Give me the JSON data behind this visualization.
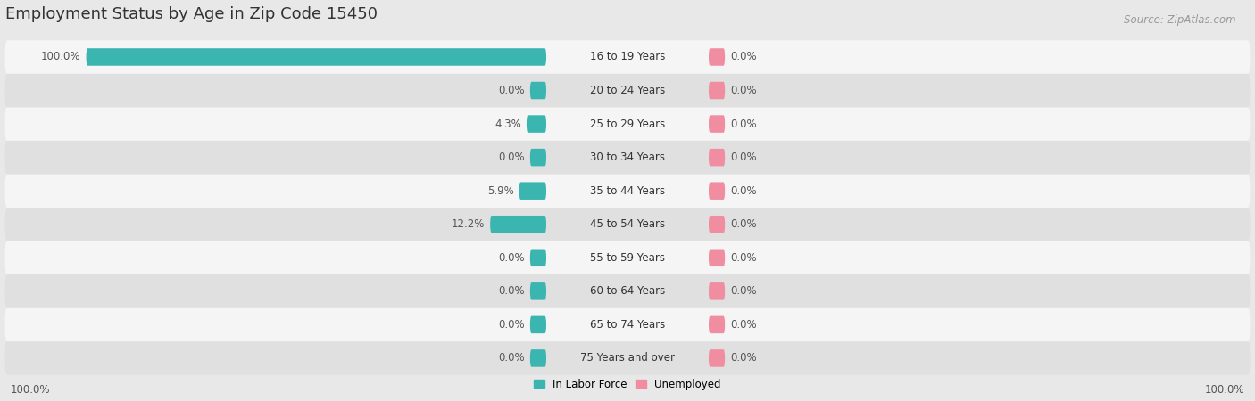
{
  "title": "Employment Status by Age in Zip Code 15450",
  "source": "Source: ZipAtlas.com",
  "categories": [
    "16 to 19 Years",
    "20 to 24 Years",
    "25 to 29 Years",
    "30 to 34 Years",
    "35 to 44 Years",
    "45 to 54 Years",
    "55 to 59 Years",
    "60 to 64 Years",
    "65 to 74 Years",
    "75 Years and over"
  ],
  "labor_force": [
    100.0,
    0.0,
    4.3,
    0.0,
    5.9,
    12.2,
    0.0,
    0.0,
    0.0,
    0.0
  ],
  "unemployed": [
    0.0,
    0.0,
    0.0,
    0.0,
    0.0,
    0.0,
    0.0,
    0.0,
    0.0,
    0.0
  ],
  "labor_force_color": "#3ab5b0",
  "unemployed_color": "#f08da0",
  "bg_color": "#e8e8e8",
  "row_color_odd": "#f5f5f5",
  "row_color_even": "#e0e0e0",
  "axis_label_left": "100.0%",
  "axis_label_right": "100.0%",
  "title_fontsize": 13,
  "label_fontsize": 8.5,
  "source_fontsize": 8.5,
  "bar_height": 0.52
}
